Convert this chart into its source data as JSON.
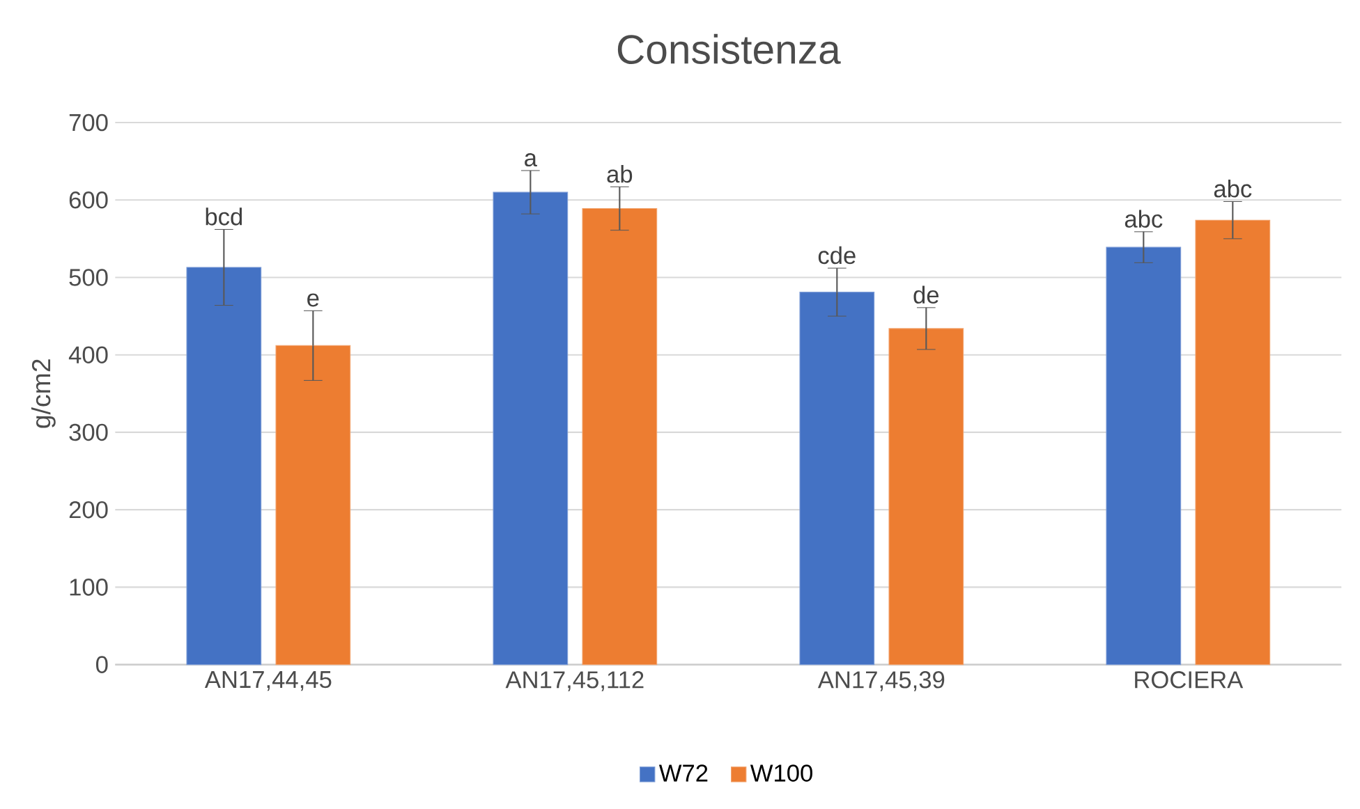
{
  "chart_data": {
    "type": "bar",
    "title": "Consistenza",
    "ylabel": "g/cm2",
    "categories": [
      "AN17,44,45",
      "AN17,45,112",
      "AN17,45,39",
      "ROCIERA"
    ],
    "series": [
      {
        "name": "W72",
        "color": "#4472c4",
        "values": [
          513,
          610,
          481,
          539
        ],
        "errors": [
          49,
          28,
          31,
          20
        ]
      },
      {
        "name": "W100",
        "color": "#ed7d31",
        "values": [
          412,
          589,
          434,
          574
        ],
        "errors": [
          45,
          28,
          27,
          24
        ]
      }
    ],
    "annotations": [
      "bcd",
      "e",
      "a",
      "ab",
      "cde",
      "de",
      "abc",
      "abc"
    ],
    "ylim": [
      0,
      700
    ],
    "yticks": [
      0,
      100,
      200,
      300,
      400,
      500,
      600,
      700
    ],
    "grid": "y",
    "legend": "bottom"
  }
}
